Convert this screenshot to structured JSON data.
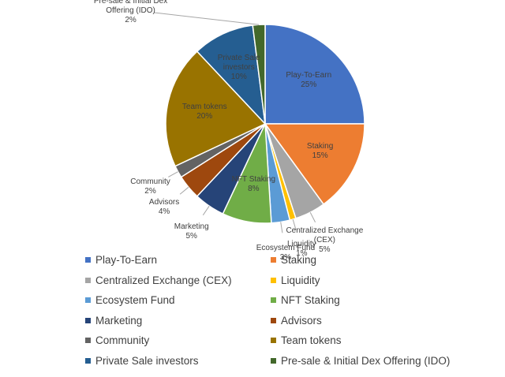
{
  "chart_data": {
    "type": "pie",
    "categories": [
      "Play-To-Earn",
      "Staking",
      "Centralized Exchange (CEX)",
      "Liquidity",
      "Ecosystem Fund",
      "NFT Staking",
      "Marketing",
      "Advisors",
      "Community",
      "Team tokens",
      "Private Sale investors",
      "Pre-sale & Initial Dex Offering (IDO)"
    ],
    "values": [
      25,
      15,
      5,
      1,
      3,
      8,
      5,
      4,
      2,
      20,
      10,
      2
    ],
    "value_labels": [
      "25%",
      "15%",
      "5%",
      "1%",
      "3%",
      "8%",
      "5%",
      "4%",
      "2%",
      "20%",
      "10%",
      "2%"
    ],
    "colors": [
      "#4472c4",
      "#ed7d31",
      "#a5a5a5",
      "#ffc000",
      "#5b9bd5",
      "#70ad47",
      "#264478",
      "#9e480e",
      "#636363",
      "#997300",
      "#255e91",
      "#43682b"
    ],
    "legend": "bottom"
  }
}
